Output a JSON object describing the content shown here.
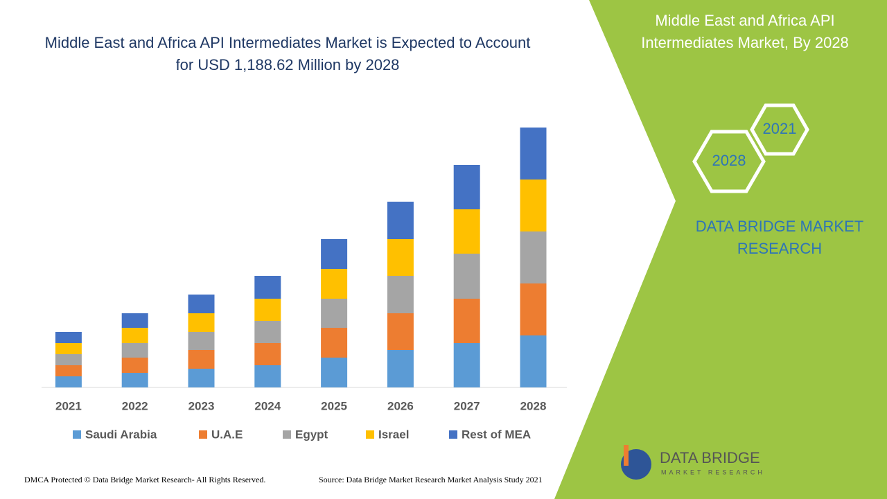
{
  "chart_data": {
    "type": "bar",
    "stacked": true,
    "title": "Middle East and Africa API Intermediates Market is Expected to Account for USD 1,188.62 Million by 2028",
    "categories": [
      "2021",
      "2022",
      "2023",
      "2024",
      "2025",
      "2026",
      "2027",
      "2028"
    ],
    "series": [
      {
        "name": "Saudi Arabia",
        "color": "#5b9bd5",
        "values": [
          16,
          21,
          27,
          32,
          43,
          54,
          64,
          75
        ]
      },
      {
        "name": "U.A.E",
        "color": "#ed7d31",
        "values": [
          16,
          22,
          27,
          32,
          43,
          53,
          64,
          75
        ]
      },
      {
        "name": "Egypt",
        "color": "#a5a5a5",
        "values": [
          16,
          21,
          26,
          32,
          42,
          54,
          65,
          75
        ]
      },
      {
        "name": "Israel",
        "color": "#ffc000",
        "values": [
          16,
          22,
          27,
          32,
          43,
          53,
          64,
          75
        ]
      },
      {
        "name": "Rest of MEA",
        "color": "#4472c4",
        "values": [
          16,
          21,
          27,
          33,
          43,
          54,
          64,
          75
        ]
      }
    ],
    "ylim": [
      0,
      375
    ]
  },
  "sidebar": {
    "title": "Middle East and Africa API Intermediates Market, By 2028",
    "hex_years": [
      "2028",
      "2021"
    ],
    "brand": "DATA BRIDGE MARKET RESEARCH"
  },
  "logo": {
    "name": "DATA BRIDGE",
    "tagline": "MARKET RESEARCH"
  },
  "footer": {
    "left": "DMCA Protected © Data Bridge Market Research- All Rights Reserved.",
    "right": "Source: Data Bridge Market Research Market Analysis Study 2021"
  }
}
